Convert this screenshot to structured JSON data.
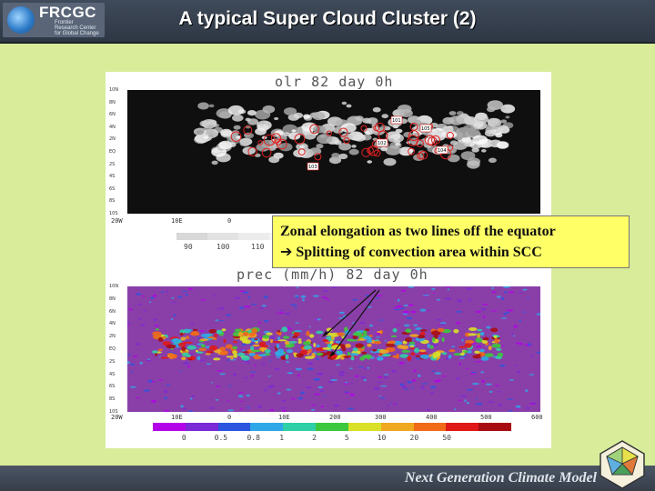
{
  "header": {
    "logo_name": "FRCGC",
    "logo_subtitle": "Frontier\nResearch Center\nfor Global Change",
    "title": "A typical Super Cloud Cluster (2)"
  },
  "figure": {
    "olr_title": "olr  82  day  0h",
    "prec_title": "prec (mm/h) 82  day 0h",
    "y_ticks": [
      "10N",
      "8N",
      "6N",
      "4N",
      "2N",
      "EQ",
      "2S",
      "4S",
      "6S",
      "8S",
      "10S"
    ],
    "x_ticks": [
      "20W",
      "10E",
      "0",
      "10E",
      "200",
      "300",
      "400",
      "500",
      "600"
    ],
    "olr_cbar_labels": [
      "90",
      "100",
      "110"
    ],
    "prec_cbar_labels": [
      "0",
      "0.5",
      "0.8",
      "1",
      "2",
      "5",
      "10",
      "20",
      "50"
    ],
    "prec_cbar_colors": [
      "#b400e8",
      "#7a2ad6",
      "#2c55e0",
      "#2fa8e8",
      "#2fd0a8",
      "#3cc83c",
      "#d8e028",
      "#f0a820",
      "#f06a18",
      "#e01818",
      "#a80c10"
    ],
    "olr_labels": [
      "101",
      "102",
      "103",
      "104",
      "105"
    ]
  },
  "annotation": {
    "line1": "Zonal elongation as two lines off the equator",
    "arrow": "➔",
    "line2": "Splitting of convection area within SCC"
  },
  "footer": {
    "text": "Next Generation Climate Model"
  }
}
